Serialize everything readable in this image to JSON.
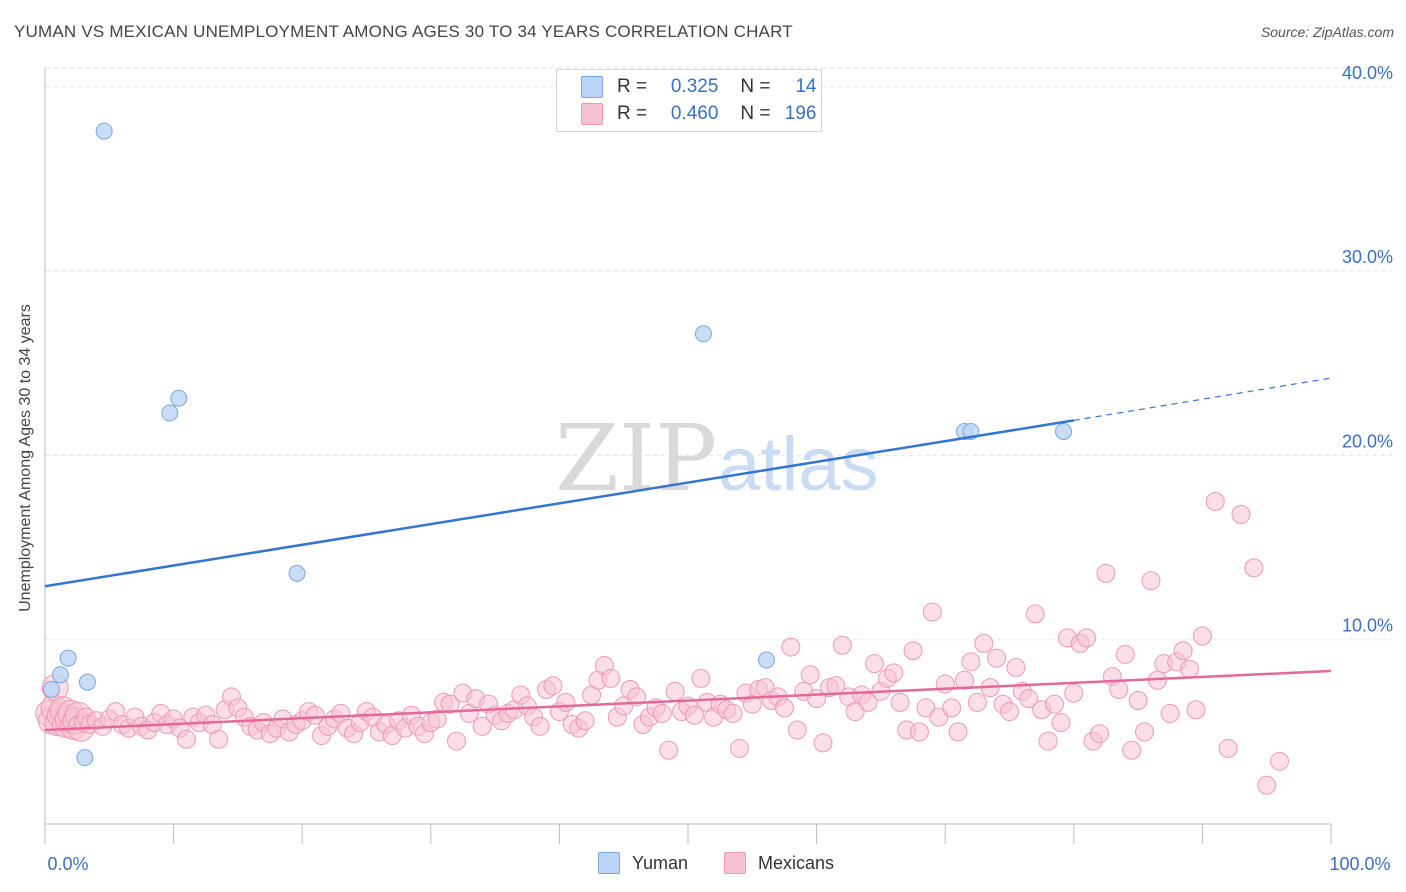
{
  "header": {
    "title": "YUMAN VS MEXICAN UNEMPLOYMENT AMONG AGES 30 TO 34 YEARS CORRELATION CHART",
    "source": "Source: ZipAtlas.com"
  },
  "watermark": {
    "part1": "ZIP",
    "part2": "atlas"
  },
  "legend": {
    "rows": [
      {
        "r_label": "R =",
        "r_value": "0.325",
        "n_label": "N =",
        "n_value": "14"
      },
      {
        "r_label": "R =",
        "r_value": "0.460",
        "n_label": "N =",
        "n_value": "196"
      }
    ]
  },
  "bottom_legend": [
    "Yuman",
    "Mexicans"
  ],
  "colors": {
    "yuman_fill": "#bcd4f6",
    "yuman_stroke": "#7aa6e0",
    "yuman_line": "#3575d1",
    "mex_fill": "#f7c3d3",
    "mex_stroke": "#ee9ab4",
    "mex_line": "#e2699a",
    "tick_label": "#3a6fc4",
    "grid": "#e3e3e3"
  },
  "chart_data": {
    "type": "scatter",
    "title": "YUMAN VS MEXICAN UNEMPLOYMENT AMONG AGES 30 TO 34 YEARS CORRELATION CHART",
    "xlabel": "",
    "ylabel": "Unemployment Among Ages 30 to 34 years",
    "xlim": [
      0,
      100
    ],
    "ylim": [
      0,
      42
    ],
    "x_tick_labels": [
      "0.0%",
      "100.0%"
    ],
    "y_ticks": [
      10,
      20,
      30,
      40
    ],
    "y_tick_labels": [
      "10.0%",
      "20.0%",
      "30.0%",
      "40.0%"
    ],
    "grid": true,
    "legend_placement": "top-center",
    "series": [
      {
        "name": "Yuman",
        "R": 0.325,
        "N": 14,
        "trend": {
          "x0": 0,
          "y0": 12.9,
          "x1": 80,
          "y1": 21.9,
          "dashed_to_x": 100,
          "dashed_to_y": 24.2
        },
        "points": [
          [
            0.5,
            7.3
          ],
          [
            1.2,
            8.1
          ],
          [
            1.8,
            9.0
          ],
          [
            3.1,
            3.6
          ],
          [
            3.3,
            7.7
          ],
          [
            4.6,
            37.6
          ],
          [
            9.7,
            22.3
          ],
          [
            10.4,
            23.1
          ],
          [
            19.6,
            13.6
          ],
          [
            51.2,
            26.6
          ],
          [
            56.1,
            8.9
          ],
          [
            71.5,
            21.3
          ],
          [
            72.0,
            21.3
          ],
          [
            79.2,
            21.3
          ]
        ]
      },
      {
        "name": "Mexicans",
        "R": 0.46,
        "N": 196,
        "trend": {
          "x0": 0,
          "y0": 5.1,
          "x1": 100,
          "y1": 8.3
        },
        "points": [
          [
            0.3,
            6.0
          ],
          [
            0.5,
            5.6
          ],
          [
            0.7,
            6.3
          ],
          [
            0.8,
            7.4
          ],
          [
            1.0,
            5.5
          ],
          [
            1.2,
            5.9
          ],
          [
            1.4,
            6.2
          ],
          [
            1.6,
            5.4
          ],
          [
            1.8,
            5.7
          ],
          [
            2.0,
            6.0
          ],
          [
            2.2,
            5.3
          ],
          [
            2.4,
            5.6
          ],
          [
            2.6,
            5.9
          ],
          [
            2.8,
            5.2
          ],
          [
            3.0,
            5.5
          ],
          [
            3.2,
            5.8
          ],
          [
            3.5,
            5.4
          ],
          [
            4.0,
            5.6
          ],
          [
            4.5,
            5.3
          ],
          [
            5.0,
            5.7
          ],
          [
            5.5,
            6.1
          ],
          [
            6.0,
            5.4
          ],
          [
            6.5,
            5.2
          ],
          [
            7.0,
            5.8
          ],
          [
            7.5,
            5.3
          ],
          [
            8.0,
            5.1
          ],
          [
            8.5,
            5.5
          ],
          [
            9.0,
            6.0
          ],
          [
            9.5,
            5.4
          ],
          [
            10.0,
            5.7
          ],
          [
            10.5,
            5.2
          ],
          [
            11.0,
            4.6
          ],
          [
            11.5,
            5.8
          ],
          [
            12.0,
            5.5
          ],
          [
            12.5,
            5.9
          ],
          [
            13.0,
            5.4
          ],
          [
            13.5,
            4.6
          ],
          [
            14.0,
            6.2
          ],
          [
            14.5,
            6.9
          ],
          [
            15.0,
            6.3
          ],
          [
            15.5,
            5.8
          ],
          [
            16.0,
            5.3
          ],
          [
            16.5,
            5.1
          ],
          [
            17.0,
            5.5
          ],
          [
            17.5,
            4.9
          ],
          [
            18.0,
            5.2
          ],
          [
            18.5,
            5.7
          ],
          [
            19.0,
            5.0
          ],
          [
            19.5,
            5.4
          ],
          [
            20.0,
            5.6
          ],
          [
            20.5,
            6.1
          ],
          [
            21.0,
            5.9
          ],
          [
            21.5,
            4.8
          ],
          [
            22.0,
            5.3
          ],
          [
            22.5,
            5.7
          ],
          [
            23.0,
            6.0
          ],
          [
            23.5,
            5.2
          ],
          [
            24.0,
            4.9
          ],
          [
            24.5,
            5.5
          ],
          [
            25.0,
            6.1
          ],
          [
            25.5,
            5.8
          ],
          [
            26.0,
            5.0
          ],
          [
            26.5,
            5.4
          ],
          [
            27.0,
            4.8
          ],
          [
            27.5,
            5.6
          ],
          [
            28.0,
            5.2
          ],
          [
            28.5,
            5.9
          ],
          [
            29.0,
            5.3
          ],
          [
            29.5,
            4.9
          ],
          [
            30.0,
            5.5
          ],
          [
            30.5,
            5.7
          ],
          [
            31.0,
            6.6
          ],
          [
            31.5,
            6.5
          ],
          [
            32.0,
            4.5
          ],
          [
            32.5,
            7.1
          ],
          [
            33.0,
            6.0
          ],
          [
            33.5,
            6.8
          ],
          [
            34.0,
            5.3
          ],
          [
            34.5,
            6.5
          ],
          [
            35.0,
            5.9
          ],
          [
            35.5,
            5.6
          ],
          [
            36.0,
            6.0
          ],
          [
            36.5,
            6.2
          ],
          [
            37.0,
            7.0
          ],
          [
            37.5,
            6.4
          ],
          [
            38.0,
            5.8
          ],
          [
            38.5,
            5.3
          ],
          [
            39.0,
            7.3
          ],
          [
            39.5,
            7.5
          ],
          [
            40.0,
            6.1
          ],
          [
            40.5,
            6.6
          ],
          [
            41.0,
            5.4
          ],
          [
            41.5,
            5.2
          ],
          [
            42.0,
            5.6
          ],
          [
            42.5,
            7.0
          ],
          [
            43.0,
            7.8
          ],
          [
            43.5,
            8.6
          ],
          [
            44.0,
            7.9
          ],
          [
            44.5,
            5.8
          ],
          [
            45.0,
            6.4
          ],
          [
            45.5,
            7.3
          ],
          [
            46.0,
            6.9
          ],
          [
            46.5,
            5.4
          ],
          [
            47.0,
            5.8
          ],
          [
            47.5,
            6.3
          ],
          [
            48.0,
            6.0
          ],
          [
            48.5,
            4.0
          ],
          [
            49.0,
            7.2
          ],
          [
            49.5,
            6.1
          ],
          [
            50.0,
            6.4
          ],
          [
            50.5,
            5.9
          ],
          [
            51.0,
            7.9
          ],
          [
            51.5,
            6.6
          ],
          [
            52.0,
            5.8
          ],
          [
            52.5,
            6.5
          ],
          [
            53.0,
            6.2
          ],
          [
            53.5,
            6.0
          ],
          [
            54.0,
            4.1
          ],
          [
            54.5,
            7.1
          ],
          [
            55.0,
            6.5
          ],
          [
            55.5,
            7.3
          ],
          [
            56.0,
            7.4
          ],
          [
            56.5,
            6.7
          ],
          [
            57.0,
            6.9
          ],
          [
            57.5,
            6.3
          ],
          [
            58.0,
            9.6
          ],
          [
            58.5,
            5.1
          ],
          [
            59.0,
            7.2
          ],
          [
            59.5,
            8.1
          ],
          [
            60.0,
            6.8
          ],
          [
            60.5,
            4.4
          ],
          [
            61.0,
            7.4
          ],
          [
            61.5,
            7.5
          ],
          [
            62.0,
            9.7
          ],
          [
            62.5,
            6.9
          ],
          [
            63.0,
            6.1
          ],
          [
            63.5,
            7.0
          ],
          [
            64.0,
            6.6
          ],
          [
            64.5,
            8.7
          ],
          [
            65.0,
            7.2
          ],
          [
            65.5,
            7.9
          ],
          [
            66.0,
            8.2
          ],
          [
            66.5,
            6.6
          ],
          [
            67.0,
            5.1
          ],
          [
            67.5,
            9.4
          ],
          [
            68.0,
            5.0
          ],
          [
            68.5,
            6.3
          ],
          [
            69.0,
            11.5
          ],
          [
            69.5,
            5.8
          ],
          [
            70.0,
            7.6
          ],
          [
            70.5,
            6.3
          ],
          [
            71.0,
            5.0
          ],
          [
            71.5,
            7.8
          ],
          [
            72.0,
            8.8
          ],
          [
            72.5,
            6.6
          ],
          [
            73.0,
            9.8
          ],
          [
            73.5,
            7.4
          ],
          [
            74.0,
            9.0
          ],
          [
            74.5,
            6.5
          ],
          [
            75.0,
            6.1
          ],
          [
            75.5,
            8.5
          ],
          [
            76.0,
            7.2
          ],
          [
            76.5,
            6.8
          ],
          [
            77.0,
            11.4
          ],
          [
            77.5,
            6.2
          ],
          [
            78.0,
            4.5
          ],
          [
            78.5,
            6.5
          ],
          [
            79.0,
            5.5
          ],
          [
            79.5,
            10.1
          ],
          [
            80.0,
            7.1
          ],
          [
            80.5,
            9.8
          ],
          [
            81.0,
            10.1
          ],
          [
            81.5,
            4.5
          ],
          [
            82.0,
            4.9
          ],
          [
            82.5,
            13.6
          ],
          [
            83.0,
            8.0
          ],
          [
            83.5,
            7.3
          ],
          [
            84.0,
            9.2
          ],
          [
            84.5,
            4.0
          ],
          [
            85.0,
            6.7
          ],
          [
            85.5,
            5.0
          ],
          [
            86.0,
            13.2
          ],
          [
            86.5,
            7.8
          ],
          [
            87.0,
            8.7
          ],
          [
            87.5,
            6.0
          ],
          [
            88.0,
            8.8
          ],
          [
            88.5,
            9.4
          ],
          [
            89.0,
            8.4
          ],
          [
            89.5,
            6.2
          ],
          [
            90.0,
            10.2
          ],
          [
            91.0,
            17.5
          ],
          [
            92.0,
            4.1
          ],
          [
            93.0,
            16.8
          ],
          [
            94.0,
            13.9
          ],
          [
            95.0,
            2.1
          ],
          [
            96.0,
            3.4
          ]
        ]
      }
    ]
  }
}
